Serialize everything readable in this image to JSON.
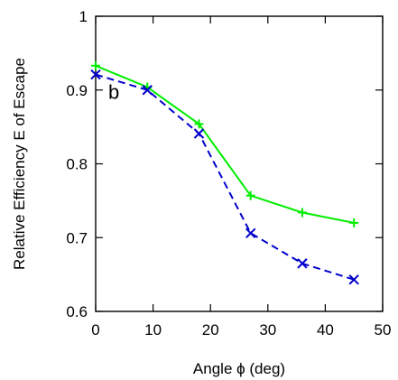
{
  "chart_data": {
    "type": "line",
    "xlabel": "Angle ϕ (deg)",
    "ylabel": "Relative Efficiency E of Escape",
    "xlim": [
      0,
      50
    ],
    "ylim": [
      0.6,
      1.0
    ],
    "x_ticks": [
      "0",
      "10",
      "20",
      "30",
      "40",
      "50"
    ],
    "y_ticks": [
      "0.6",
      "0.7",
      "0.8",
      "0.9",
      "1"
    ],
    "grid": false,
    "annotations": [
      {
        "text": "b",
        "x": 2.2,
        "y": 0.905
      }
    ],
    "series": [
      {
        "marker": "plus",
        "line": "solid",
        "color": "#00ee00",
        "x": [
          0,
          9,
          18,
          27,
          36,
          45
        ],
        "y": [
          0.933,
          0.904,
          0.854,
          0.757,
          0.734,
          0.72
        ]
      },
      {
        "marker": "x",
        "line": "dashed",
        "color": "#0000cc",
        "x": [
          0,
          9,
          18,
          27,
          36,
          45
        ],
        "y": [
          0.921,
          0.9,
          0.841,
          0.706,
          0.665,
          0.643
        ]
      }
    ]
  }
}
